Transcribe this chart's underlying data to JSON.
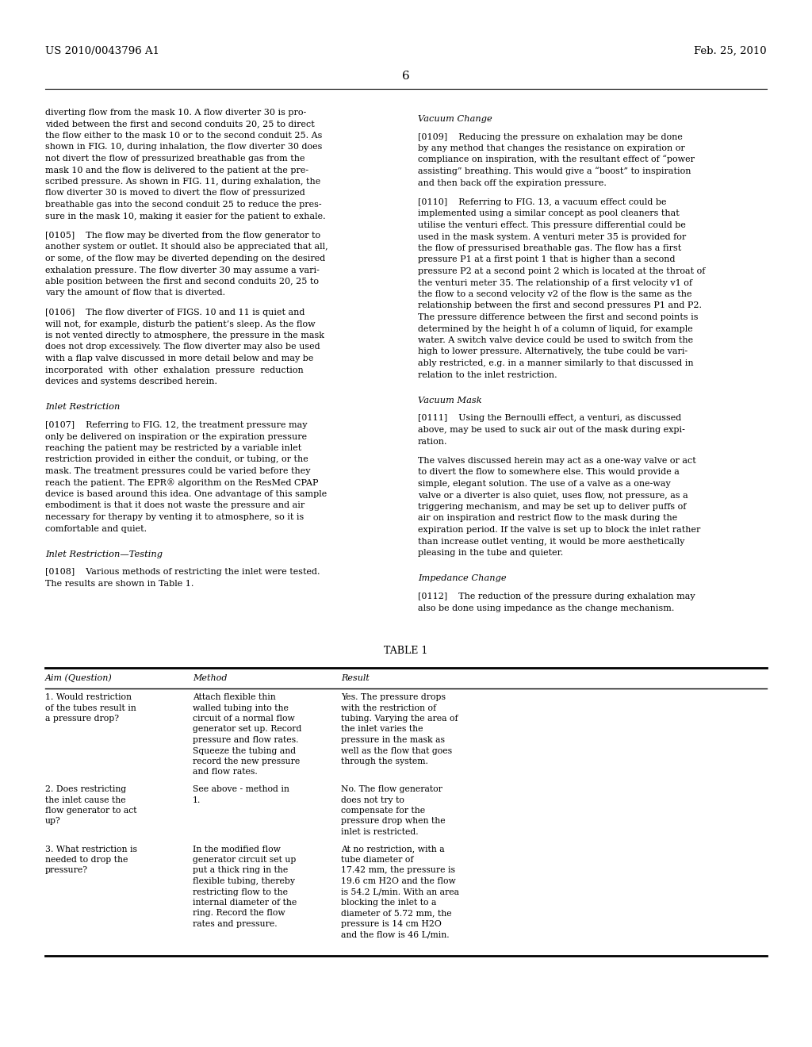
{
  "background_color": "#ffffff",
  "header_left": "US 2010/0043796 A1",
  "header_right": "Feb. 25, 2010",
  "page_number": "6",
  "left_column_paragraphs": [
    {
      "style": "body",
      "lines": [
        "diverting flow from the mask 10. A flow diverter 30 is pro-",
        "vided between the first and second conduits 20, 25 to direct",
        "the flow either to the mask 10 or to the second conduit 25. As",
        "shown in FIG. 10, during inhalation, the flow diverter 30 does",
        "not divert the flow of pressurized breathable gas from the",
        "mask 10 and the flow is delivered to the patient at the pre-",
        "scribed pressure. As shown in FIG. 11, during exhalation, the",
        "flow diverter 30 is moved to divert the flow of pressurized",
        "breathable gas into the second conduit 25 to reduce the pres-",
        "sure in the mask 10, making it easier for the patient to exhale."
      ]
    },
    {
      "style": "body",
      "lines": [
        "[0105]    The flow may be diverted from the flow generator to",
        "another system or outlet. It should also be appreciated that all,",
        "or some, of the flow may be diverted depending on the desired",
        "exhalation pressure. The flow diverter 30 may assume a vari-",
        "able position between the first and second conduits 20, 25 to",
        "vary the amount of flow that is diverted."
      ]
    },
    {
      "style": "body",
      "lines": [
        "[0106]    The flow diverter of FIGS. 10 and 11 is quiet and",
        "will not, for example, disturb the patient’s sleep. As the flow",
        "is not vented directly to atmosphere, the pressure in the mask",
        "does not drop excessively. The flow diverter may also be used",
        "with a flap valve discussed in more detail below and may be",
        "incorporated  with  other  exhalation  pressure  reduction",
        "devices and systems described herein."
      ]
    },
    {
      "style": "section",
      "lines": [
        "Inlet Restriction"
      ]
    },
    {
      "style": "body",
      "lines": [
        "[0107]    Referring to FIG. 12, the treatment pressure may",
        "only be delivered on inspiration or the expiration pressure",
        "reaching the patient may be restricted by a variable inlet",
        "restriction provided in either the conduit, or tubing, or the",
        "mask. The treatment pressures could be varied before they",
        "reach the patient. The EPR® algorithm on the ResMed CPAP",
        "device is based around this idea. One advantage of this sample",
        "embodiment is that it does not waste the pressure and air",
        "necessary for therapy by venting it to atmosphere, so it is",
        "comfortable and quiet."
      ]
    },
    {
      "style": "section",
      "lines": [
        "Inlet Restriction—Testing"
      ]
    },
    {
      "style": "body",
      "lines": [
        "[0108]    Various methods of restricting the inlet were tested.",
        "The results are shown in Table 1."
      ]
    }
  ],
  "right_column_paragraphs": [
    {
      "style": "section",
      "lines": [
        "Vacuum Change"
      ]
    },
    {
      "style": "body",
      "lines": [
        "[0109]    Reducing the pressure on exhalation may be done",
        "by any method that changes the resistance on expiration or",
        "compliance on inspiration, with the resultant effect of “power",
        "assisting” breathing. This would give a “boost” to inspiration",
        "and then back off the expiration pressure."
      ]
    },
    {
      "style": "body",
      "lines": [
        "[0110]    Referring to FIG. 13, a vacuum effect could be",
        "implemented using a similar concept as pool cleaners that",
        "utilise the venturi effect. This pressure differential could be",
        "used in the mask system. A venturi meter 35 is provided for",
        "the flow of pressurised breathable gas. The flow has a first",
        "pressure P1 at a first point 1 that is higher than a second",
        "pressure P2 at a second point 2 which is located at the throat of",
        "the venturi meter 35. The relationship of a first velocity v1 of",
        "the flow to a second velocity v2 of the flow is the same as the",
        "relationship between the first and second pressures P1 and P2.",
        "The pressure difference between the first and second points is",
        "determined by the height h of a column of liquid, for example",
        "water. A switch valve device could be used to switch from the",
        "high to lower pressure. Alternatively, the tube could be vari-",
        "ably restricted, e.g. in a manner similarly to that discussed in",
        "relation to the inlet restriction."
      ]
    },
    {
      "style": "section",
      "lines": [
        "Vacuum Mask"
      ]
    },
    {
      "style": "body",
      "lines": [
        "[0111]    Using the Bernoulli effect, a venturi, as discussed",
        "above, may be used to suck air out of the mask during expi-",
        "ration."
      ]
    },
    {
      "style": "body",
      "lines": [
        "The valves discussed herein may act as a one-way valve or act",
        "to divert the flow to somewhere else. This would provide a",
        "simple, elegant solution. The use of a valve as a one-way",
        "valve or a diverter is also quiet, uses flow, not pressure, as a",
        "triggering mechanism, and may be set up to deliver puffs of",
        "air on inspiration and restrict flow to the mask during the",
        "expiration period. If the valve is set up to block the inlet rather",
        "than increase outlet venting, it would be more aesthetically",
        "pleasing in the tube and quieter."
      ]
    },
    {
      "style": "section",
      "lines": [
        "Impedance Change"
      ]
    },
    {
      "style": "body",
      "lines": [
        "[0112]    The reduction of the pressure during exhalation may",
        "also be done using impedance as the change mechanism."
      ]
    }
  ],
  "table_title": "TABLE 1",
  "table_headers": [
    "Aim (Question)",
    "Method",
    "Result"
  ],
  "table_rows": [
    [
      [
        "1. Would restriction",
        "of the tubes result in",
        "a pressure drop?"
      ],
      [
        "Attach flexible thin",
        "walled tubing into the",
        "circuit of a normal flow",
        "generator set up. Record",
        "pressure and flow rates.",
        "Squeeze the tubing and",
        "record the new pressure",
        "and flow rates."
      ],
      [
        "Yes. The pressure drops",
        "with the restriction of",
        "tubing. Varying the area of",
        "the inlet varies the",
        "pressure in the mask as",
        "well as the flow that goes",
        "through the system."
      ]
    ],
    [
      [
        "2. Does restricting",
        "the inlet cause the",
        "flow generator to act",
        "up?"
      ],
      [
        "See above - method in",
        "1."
      ],
      [
        "No. The flow generator",
        "does not try to",
        "compensate for the",
        "pressure drop when the",
        "inlet is restricted."
      ]
    ],
    [
      [
        "3. What restriction is",
        "needed to drop the",
        "pressure?"
      ],
      [
        "In the modified flow",
        "generator circuit set up",
        "put a thick ring in the",
        "flexible tubing, thereby",
        "restricting flow to the",
        "internal diameter of the",
        "ring. Record the flow",
        "rates and pressure."
      ],
      [
        "At no restriction, with a",
        "tube diameter of",
        "17.42 mm, the pressure is",
        "19.6 cm H2O and the flow",
        "is 54.2 L/min. With an area",
        "blocking the inlet to a",
        "diameter of 5.72 mm, the",
        "pressure is 14 cm H2O",
        "and the flow is 46 L/min."
      ]
    ]
  ]
}
